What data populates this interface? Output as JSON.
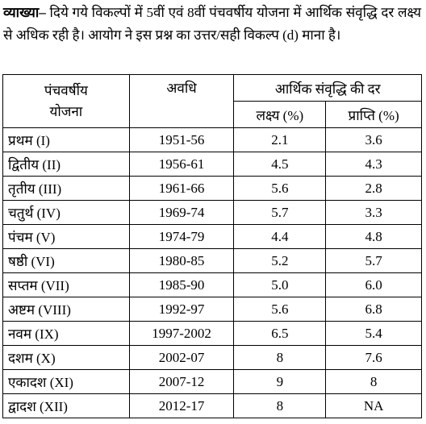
{
  "explanation": {
    "label": "व्याख्या–",
    "text": "दिये गये विकल्पों में 5वीं एवं 8वीं पंचवर्षीय योजना में आर्थिक संवृद्धि दर लक्ष्य से अधिक रही है। आयोग ने इस प्रश्न का उत्तर/सही विकल्प (d) माना है।"
  },
  "table": {
    "header": {
      "plan": "पंचवर्षीय योजना",
      "period": "अवधि",
      "growth": "आर्थिक संवृद्धि की दर",
      "target": "लक्ष्य (%)",
      "achieved": "प्राप्ति (%)"
    },
    "rows": [
      [
        "प्रथम (I)",
        "1951-56",
        "2.1",
        "3.6"
      ],
      [
        "द्वितीय (II)",
        "1956-61",
        "4.5",
        "4.3"
      ],
      [
        "तृतीय (III)",
        "1961-66",
        "5.6",
        "2.8"
      ],
      [
        "चतुर्थ (IV)",
        "1969-74",
        "5.7",
        "3.3"
      ],
      [
        "पंचम (V)",
        "1974-79",
        "4.4",
        "4.8"
      ],
      [
        "षष्ठी (VI)",
        "1980-85",
        "5.2",
        "5.7"
      ],
      [
        "सप्तम (VII)",
        "1985-90",
        "5.0",
        "6.0"
      ],
      [
        "अष्टम (VIII)",
        "1992-97",
        "5.6",
        "6.8"
      ],
      [
        "नवम (IX)",
        "1997-2002",
        "6.5",
        "5.4"
      ],
      [
        "दशम (X)",
        "2002-07",
        "8",
        "7.6"
      ],
      [
        "एकादश (XI)",
        "2007-12",
        "9",
        "8"
      ],
      [
        "द्वादश (XII)",
        "2012-17",
        "8",
        "NA"
      ]
    ]
  }
}
